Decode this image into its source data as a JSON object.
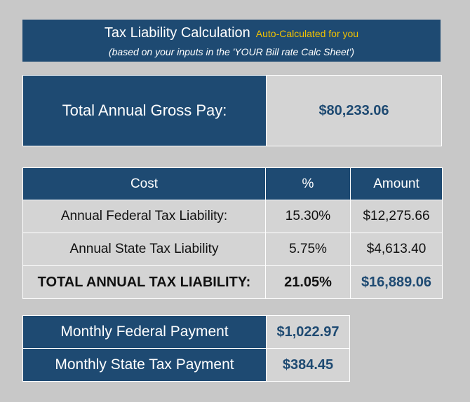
{
  "header": {
    "title": "Tax Liability Calculation",
    "subtitle": "Auto-Calculated for you",
    "note": "(based on your inputs in the 'YOUR Bill rate Calc Sheet')"
  },
  "gross": {
    "label": "Total Annual Gross Pay:",
    "value": "$80,233.06"
  },
  "tax_table": {
    "headers": [
      "Cost",
      "%",
      "Amount"
    ],
    "rows": [
      {
        "cost": "Annual Federal Tax Liability:",
        "pct": "15.30%",
        "amount": "$12,275.66"
      },
      {
        "cost": "Annual State Tax Liability",
        "pct": "5.75%",
        "amount": "$4,613.40"
      },
      {
        "cost": "TOTAL ANNUAL TAX LIABILITY:",
        "pct": "21.05%",
        "amount": "$16,889.06"
      }
    ]
  },
  "monthly": [
    {
      "label": "Monthly Federal Payment",
      "value": "$1,022.97"
    },
    {
      "label": "Monthly State Tax Payment",
      "value": "$384.45"
    }
  ],
  "colors": {
    "navy": "#1e4a72",
    "subtitle_gold": "#f2c200",
    "cell_gray": "#d4d4d4",
    "background": "#c8c8c8"
  }
}
